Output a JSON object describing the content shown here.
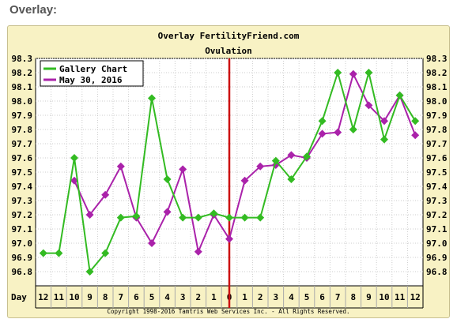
{
  "heading": "Overlay:",
  "chart_data": {
    "type": "line",
    "title": "Overlay FertilityFriend.com",
    "subtitle": "Ovulation",
    "xlabel": "Day",
    "categories": [
      "12",
      "11",
      "10",
      "9",
      "8",
      "7",
      "6",
      "5",
      "4",
      "3",
      "2",
      "1",
      "0",
      "1",
      "2",
      "3",
      "4",
      "5",
      "6",
      "7",
      "8",
      "9",
      "10",
      "11",
      "12"
    ],
    "ovulation_index": 12,
    "ylim": [
      96.7,
      98.3
    ],
    "yticks": [
      "96.8",
      "96.9",
      "97.0",
      "97.1",
      "97.2",
      "97.3",
      "97.4",
      "97.5",
      "97.6",
      "97.7",
      "97.8",
      "97.9",
      "98.0",
      "98.1",
      "98.2",
      "98.3"
    ],
    "series": [
      {
        "name": "Gallery Chart",
        "color": "#33bb22",
        "values": [
          96.93,
          96.93,
          97.6,
          96.8,
          96.93,
          97.18,
          97.19,
          98.02,
          97.45,
          97.18,
          97.18,
          97.21,
          97.18,
          97.18,
          97.18,
          97.58,
          97.45,
          97.61,
          97.86,
          98.2,
          97.8,
          98.2,
          97.73,
          98.04,
          97.86
        ]
      },
      {
        "name": "May 30, 2016",
        "color": "#aa22aa",
        "values": [
          null,
          null,
          97.44,
          97.2,
          97.34,
          97.54,
          97.18,
          97.0,
          97.22,
          97.52,
          96.94,
          97.2,
          97.03,
          97.44,
          97.54,
          97.55,
          97.62,
          97.6,
          97.77,
          97.78,
          98.19,
          97.97,
          97.86,
          98.04,
          97.76
        ]
      }
    ],
    "grid": true,
    "legend": "top-left",
    "footer": "Copyright 1998-2016 Tamtris Web Services Inc. - All Rights Reserved."
  }
}
